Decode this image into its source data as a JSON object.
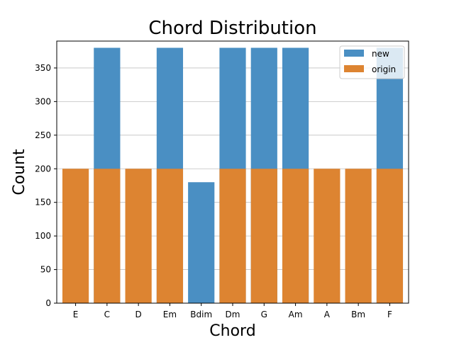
{
  "chart_data": {
    "type": "bar",
    "title": "Chord Distribution",
    "xlabel": "Chord",
    "ylabel": "Count",
    "categories": [
      "E",
      "C",
      "D",
      "Em",
      "Bdim",
      "Dm",
      "G",
      "Am",
      "A",
      "Bm",
      "F"
    ],
    "series": [
      {
        "name": "new",
        "values": [
          0,
          380,
          0,
          380,
          180,
          380,
          380,
          380,
          0,
          0,
          380
        ],
        "color": "#4a8fc3"
      },
      {
        "name": "origin",
        "values": [
          200,
          200,
          200,
          200,
          0,
          200,
          200,
          200,
          200,
          200,
          200
        ],
        "color": "#dd8431"
      }
    ],
    "ylim": [
      0,
      390
    ],
    "yticks": [
      0,
      50,
      100,
      150,
      200,
      250,
      300,
      350
    ],
    "grid": "y",
    "legend": {
      "position": "top-right",
      "entries": [
        "new",
        "origin"
      ]
    }
  }
}
